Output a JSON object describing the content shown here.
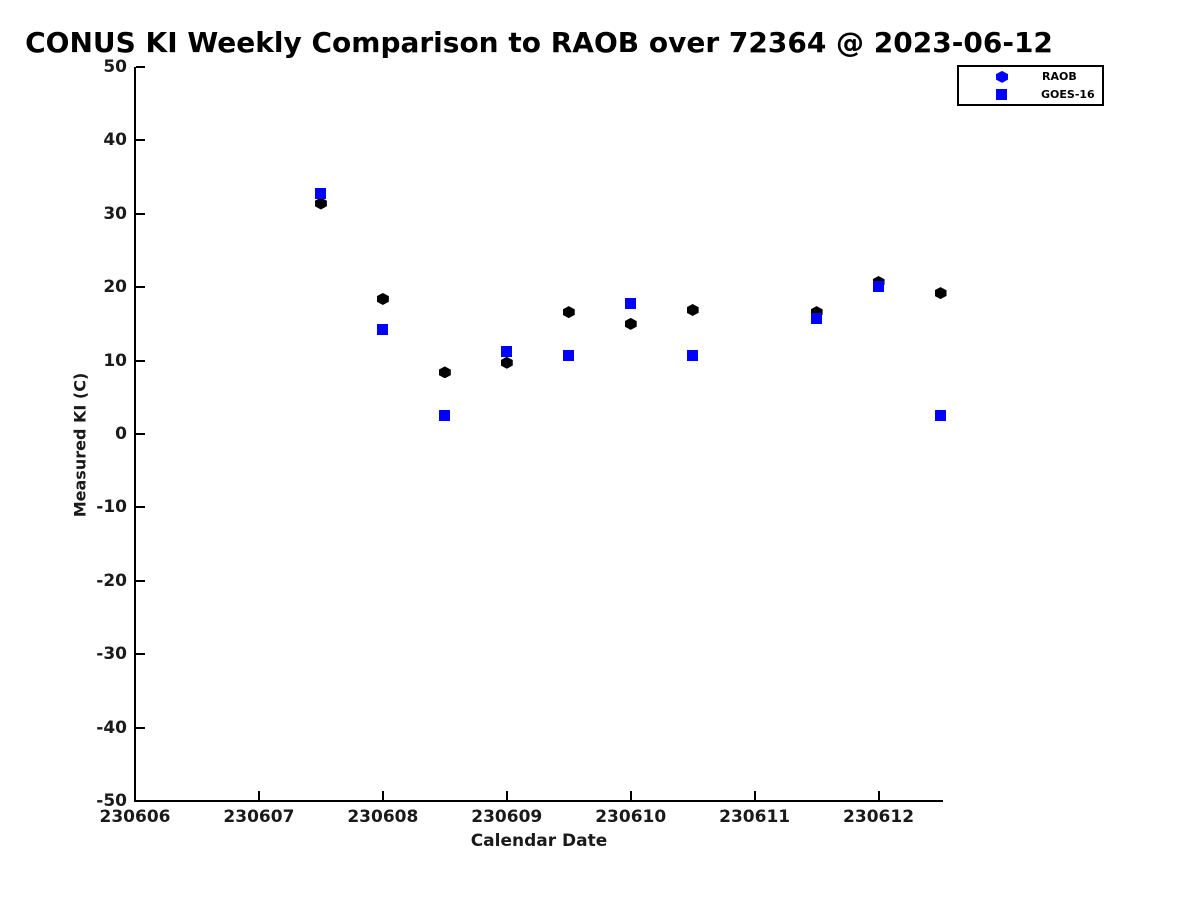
{
  "chart_data": {
    "type": "scatter",
    "title": "CONUS KI Weekly Comparison to RAOB over 72364 @ 2023-06-12",
    "xlabel": "Calendar Date",
    "ylabel": "Measured KI (C)",
    "xlim": [
      230606,
      230612.52
    ],
    "ylim": [
      -50,
      50
    ],
    "xticks": [
      "230606",
      "230607",
      "230608",
      "230609",
      "230610",
      "230611",
      "230612"
    ],
    "xtick_values": [
      230606,
      230607,
      230608,
      230609,
      230610,
      230611,
      230612
    ],
    "yticks": [
      "50",
      "40",
      "30",
      "20",
      "10",
      "0",
      "-10",
      "-20",
      "-30",
      "-40",
      "-50"
    ],
    "ytick_values": [
      50,
      40,
      30,
      20,
      10,
      0,
      -10,
      -20,
      -30,
      -40,
      -50
    ],
    "grid": false,
    "legend_position": "upper-right-outside-plot",
    "colors": {
      "axis": "#000000",
      "text": "#1a1a1a",
      "raob_plot_marker": "#000000",
      "goes_plot_marker": "#0000ff",
      "legend_marker": "#0000ff"
    },
    "series": [
      {
        "name": "RAOB",
        "marker": "hexagon",
        "color": "#000000",
        "legend_color": "#0000ff",
        "x": [
          230607.5,
          230608.0,
          230608.5,
          230609.0,
          230609.5,
          230610.0,
          230610.5,
          230611.5,
          230612.0,
          230612.5
        ],
        "y": [
          31.4,
          18.4,
          8.4,
          9.7,
          16.6,
          15.0,
          16.9,
          16.6,
          20.7,
          19.2
        ]
      },
      {
        "name": "GOES-16",
        "marker": "square",
        "color": "#0000ff",
        "legend_color": "#0000ff",
        "x": [
          230607.5,
          230608.0,
          230608.5,
          230609.0,
          230609.5,
          230610.0,
          230610.5,
          230611.5,
          230612.0,
          230612.5
        ],
        "y": [
          32.8,
          14.3,
          2.5,
          11.2,
          10.7,
          17.8,
          10.7,
          15.7,
          20.1,
          2.5
        ]
      }
    ]
  }
}
